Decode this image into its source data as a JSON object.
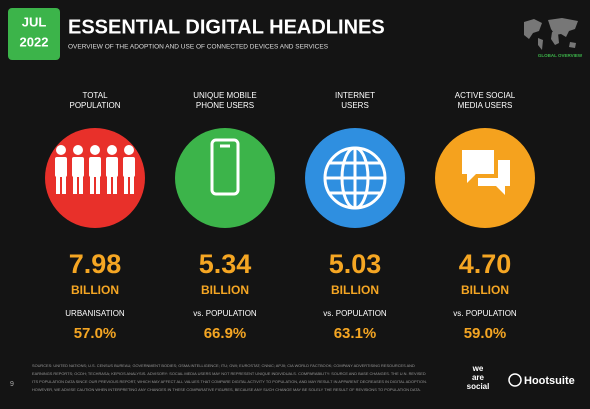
{
  "header": {
    "badge": [
      "JUL",
      "2022"
    ],
    "title": "ESSENTIAL DIGITAL HEADLINES",
    "subtitle": "OVERVIEW OF THE ADOPTION AND USE OF CONNECTED DEVICES AND SERVICES",
    "region": "GLOBAL OVERVIEW"
  },
  "columns": [
    {
      "label": [
        "TOTAL",
        "POPULATION"
      ],
      "color": "#e8302a",
      "value": "7.98",
      "unit": "BILLION",
      "sub_label": "URBANISATION",
      "sub_value": "57.0%"
    },
    {
      "label": [
        "UNIQUE MOBILE",
        "PHONE USERS"
      ],
      "color": "#3cb44a",
      "value": "5.34",
      "unit": "BILLION",
      "sub_label": "vs. POPULATION",
      "sub_value": "66.9%"
    },
    {
      "label": [
        "INTERNET",
        "USERS"
      ],
      "color": "#2f8fe0",
      "value": "5.03",
      "unit": "BILLION",
      "sub_label": "vs. POPULATION",
      "sub_value": "63.1%"
    },
    {
      "label": [
        "ACTIVE SOCIAL",
        "MEDIA USERS"
      ],
      "color": "#f5a21e",
      "value": "4.70",
      "unit": "BILLION",
      "sub_label": "vs. POPULATION",
      "sub_value": "59.0%"
    }
  ],
  "footer": {
    "page": "9",
    "sources": [
      "SOURCES: UNITED NATIONS; U.S. CENSUS BUREAU; GOVERNMENT BODIES; GSMA INTELLIGENCE; ITU; GWI; EUROSTAT; CNNIC; APJII; CIA WORLD FACTBOOK; COMPANY ADVERTISING RESOURCES AND",
      "EARNINGS REPORTS; OCDH; TECHRASA; KEPIOS ANALYSIS. ADVISORY: SOCIAL MEDIA USERS MAY NOT REPRESENT UNIQUE INDIVIDUALS. COMPARABILITY: SOURCE AND BASE CHANGES. THE U.N. REVISED",
      "ITS POPULATION DATA SINCE OUR PREVIOUS REPORT, WHICH MAY AFFECT ALL VALUES THAT COMPARE DIGITAL ACTIVITY TO POPULATION, AND MAY RESULT IN APPARENT DECREASES IN DIGITAL ADOPTION.",
      "HOWEVER, WE ADVISE CAUTION WHEN INTERPRETING ANY CHANGES IN THESE COMPARATIVE FIGURES, BECAUSE ANY SUCH CHANGE MAY BE SOLELY THE RESULT OF REVISIONS TO POPULATION DATA."
    ],
    "brand": [
      "we",
      "are",
      "social"
    ],
    "partner": "Hootsuite"
  }
}
